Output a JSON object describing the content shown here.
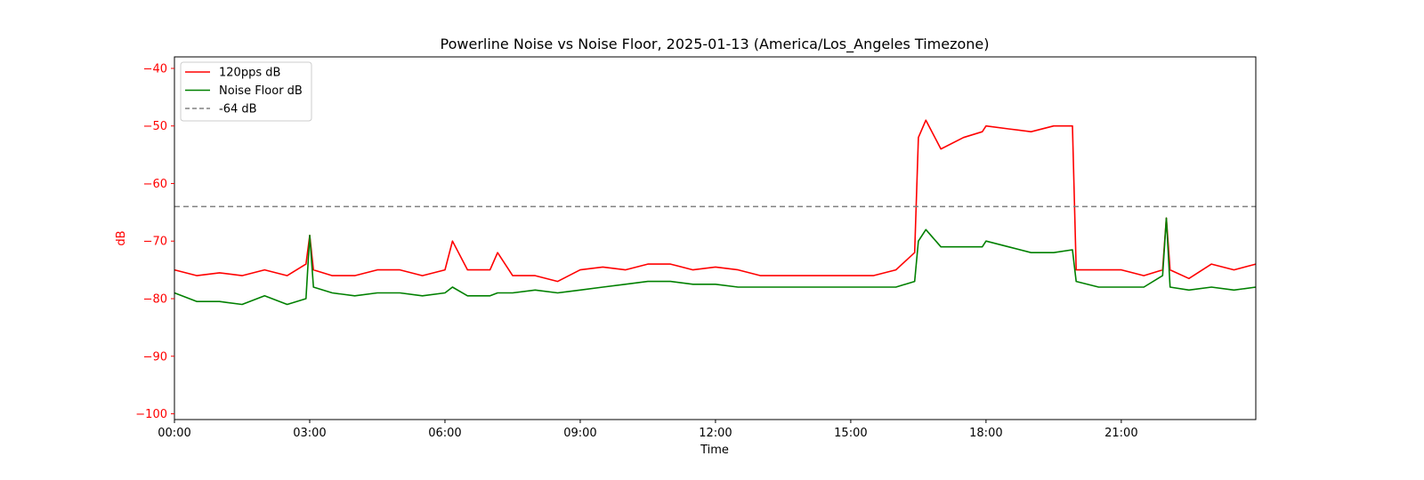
{
  "chart_data": {
    "type": "line",
    "title": "Powerline Noise vs Noise Floor, 2025-01-13 (America/Los_Angeles Timezone)",
    "xlabel": "Time",
    "ylabel": "dB",
    "xlim": [
      "00:00",
      "23:59"
    ],
    "ylim": [
      -101,
      -38
    ],
    "x_ticks": [
      "00:00",
      "03:00",
      "06:00",
      "09:00",
      "12:00",
      "15:00",
      "18:00",
      "21:00"
    ],
    "y_ticks": [
      -40,
      -50,
      -60,
      -70,
      -80,
      -90,
      -100
    ],
    "grid": false,
    "legend_position": "top-left",
    "y_axis_color": "#ff0000",
    "x": [
      "00:00",
      "00:30",
      "01:00",
      "01:30",
      "02:00",
      "02:30",
      "02:55",
      "03:00",
      "03:05",
      "03:30",
      "04:00",
      "04:30",
      "05:00",
      "05:30",
      "06:00",
      "06:10",
      "06:30",
      "07:00",
      "07:10",
      "07:30",
      "08:00",
      "08:30",
      "09:00",
      "09:30",
      "10:00",
      "10:30",
      "11:00",
      "11:30",
      "12:00",
      "12:30",
      "13:00",
      "13:30",
      "14:00",
      "14:30",
      "15:00",
      "15:30",
      "16:00",
      "16:25",
      "16:30",
      "16:40",
      "17:00",
      "17:30",
      "17:55",
      "18:00",
      "18:30",
      "19:00",
      "19:30",
      "19:55",
      "20:00",
      "20:30",
      "21:00",
      "21:30",
      "21:55",
      "22:00",
      "22:05",
      "22:30",
      "23:00",
      "23:30",
      "23:59"
    ],
    "series": [
      {
        "name": "120pps dB",
        "color": "#ff0000",
        "style": "solid",
        "values": [
          -75,
          -76,
          -75.5,
          -76,
          -75,
          -76,
          -74,
          -69,
          -75,
          -76,
          -76,
          -75,
          -75,
          -76,
          -75,
          -70,
          -75,
          -75,
          -72,
          -76,
          -76,
          -77,
          -75,
          -74.5,
          -75,
          -74,
          -74,
          -75,
          -74.5,
          -75,
          -76,
          -76,
          -76,
          -76,
          -76,
          -76,
          -75,
          -72,
          -52,
          -49,
          -54,
          -52,
          -51,
          -50,
          -50.5,
          -51,
          -50,
          -50,
          -75,
          -75,
          -75,
          -76,
          -75,
          -66,
          -75,
          -76.5,
          -74,
          -75,
          -74
        ]
      },
      {
        "name": "Noise Floor dB",
        "color": "#008000",
        "style": "solid",
        "values": [
          -79,
          -80.5,
          -80.5,
          -81,
          -79.5,
          -81,
          -80,
          -69,
          -78,
          -79,
          -79.5,
          -79,
          -79,
          -79.5,
          -79,
          -78,
          -79.5,
          -79.5,
          -79,
          -79,
          -78.5,
          -79,
          -78.5,
          -78,
          -77.5,
          -77,
          -77,
          -77.5,
          -77.5,
          -78,
          -78,
          -78,
          -78,
          -78,
          -78,
          -78,
          -78,
          -77,
          -70,
          -68,
          -71,
          -71,
          -71,
          -70,
          -71,
          -72,
          -72,
          -71.5,
          -77,
          -78,
          -78,
          -78,
          -76,
          -66,
          -78,
          -78.5,
          -78,
          -78.5,
          -78
        ]
      },
      {
        "name": "-64 dB",
        "color": "#808080",
        "style": "dashed",
        "constant": -64
      }
    ]
  }
}
